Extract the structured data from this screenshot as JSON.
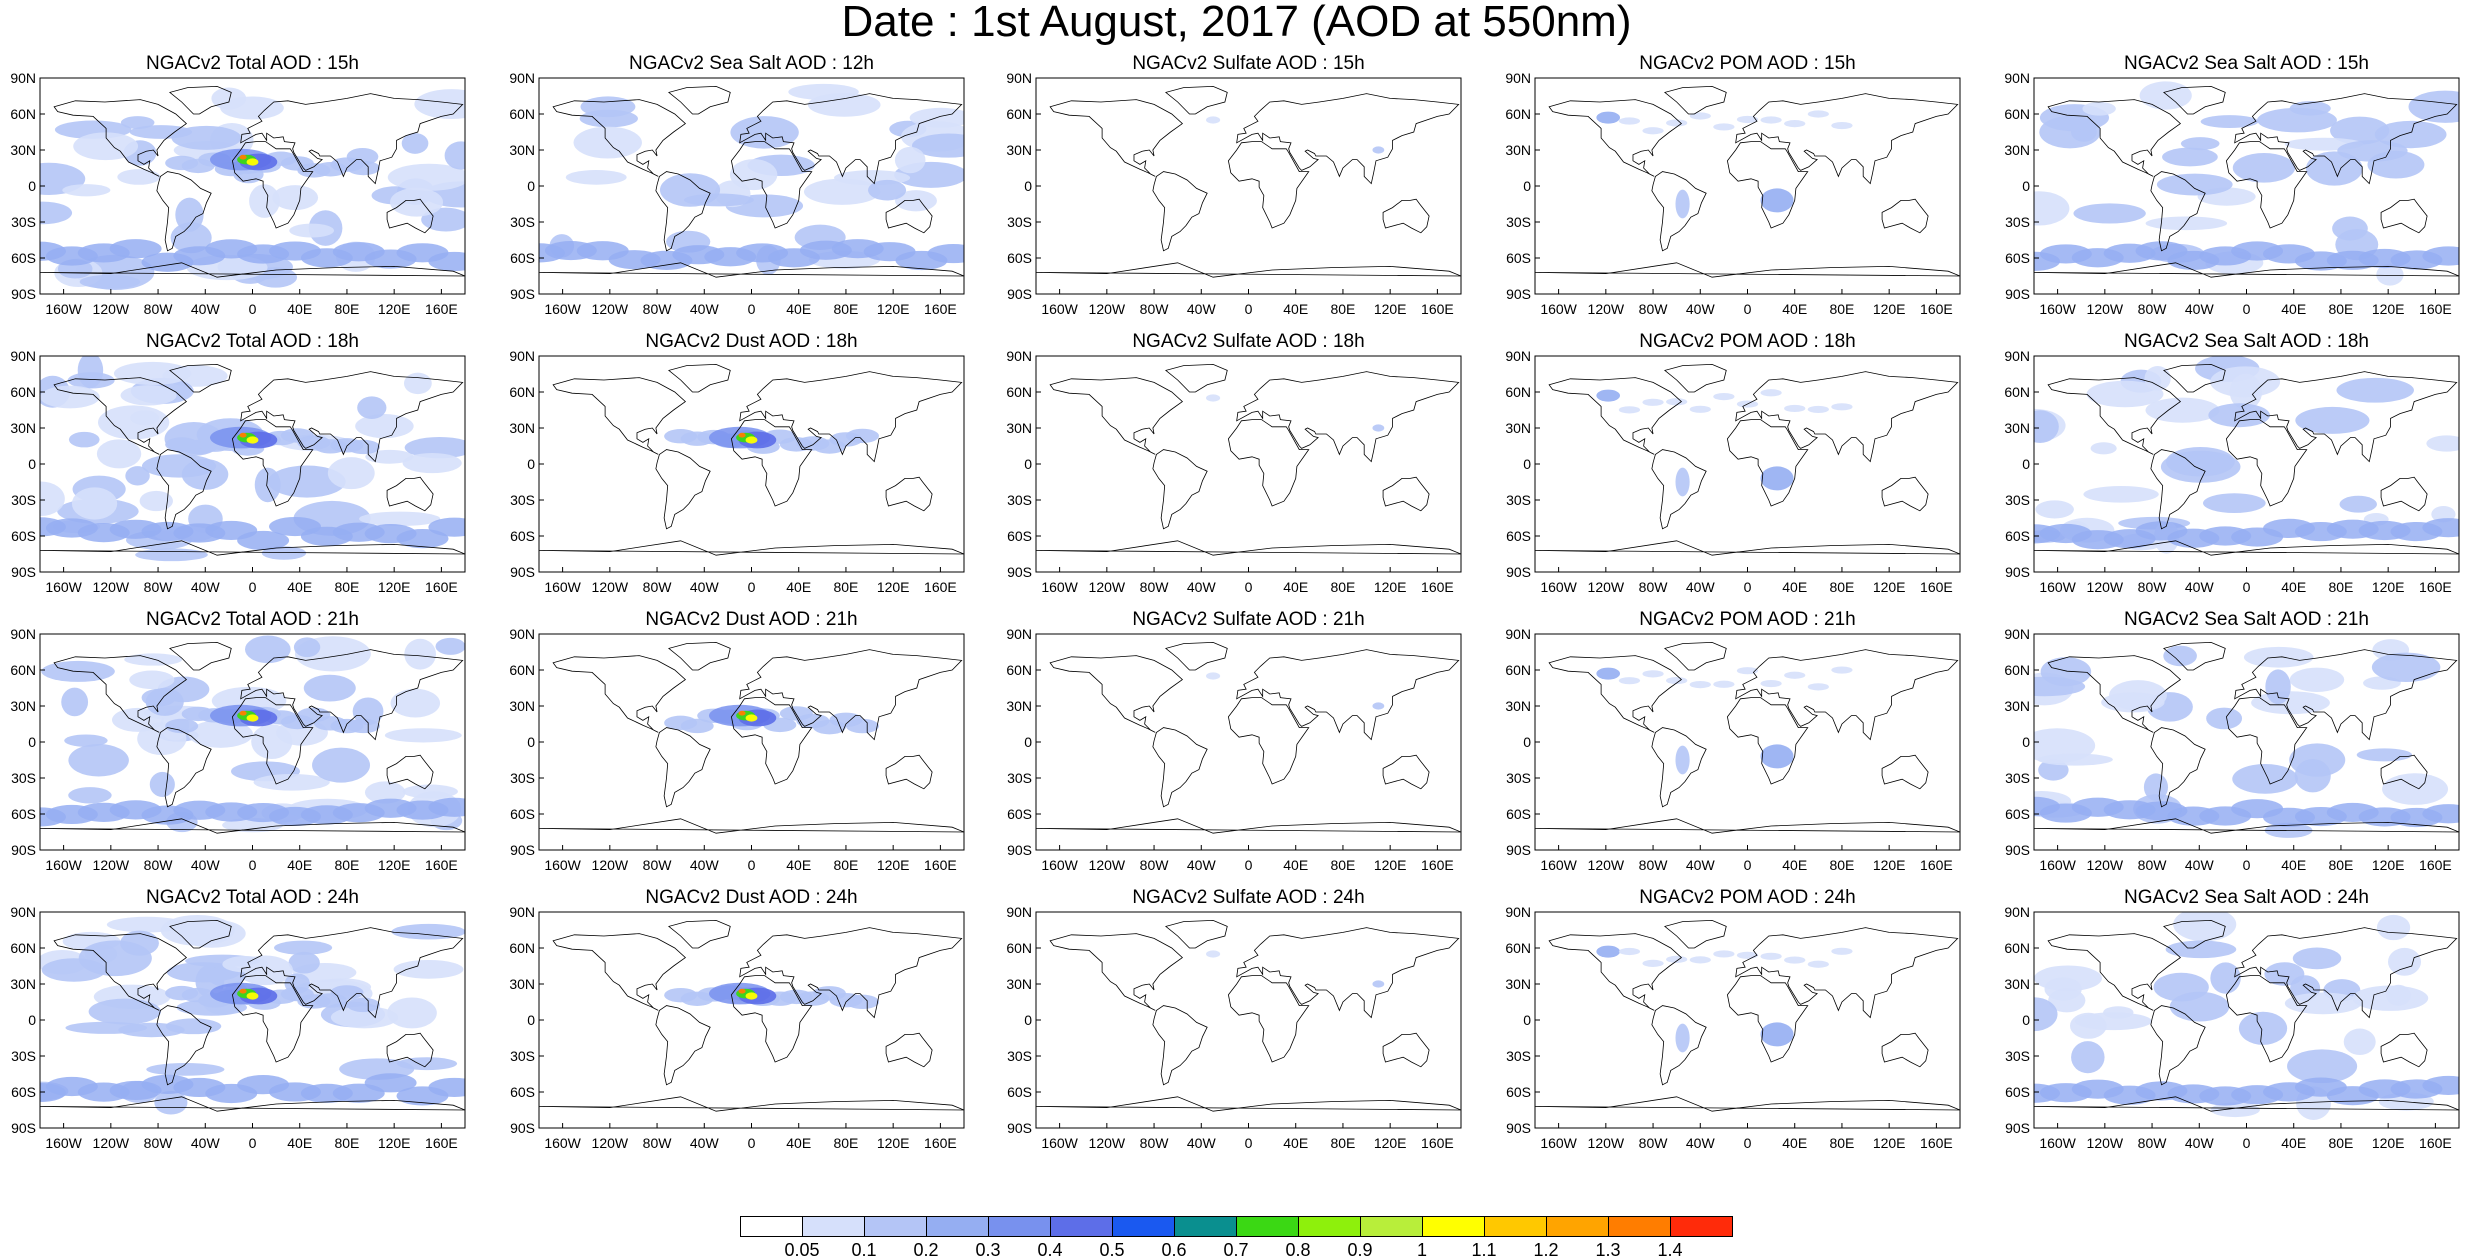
{
  "title": "Date : 1st August, 2017 (AOD at 550nm)",
  "lat_labels": [
    "90N",
    "60N",
    "30N",
    "0",
    "30S",
    "60S",
    "90S"
  ],
  "lon_labels": [
    "160W",
    "120W",
    "80W",
    "40W",
    "0",
    "40E",
    "80E",
    "120E",
    "160E"
  ],
  "panels": [
    [
      "NGACv2 Total AOD : 15h",
      "NGACv2 Sea Salt  AOD : 12h",
      "NGACv2 Sulfate AOD : 15h",
      "NGACv2 POM AOD : 15h",
      "NGACv2 Sea Salt AOD : 15h"
    ],
    [
      "NGACv2 Total AOD : 18h",
      "NGACv2 Dust AOD : 18h",
      "NGACv2 Sulfate AOD : 18h",
      "NGACv2 POM AOD : 18h",
      "NGACv2 Sea Salt AOD : 18h"
    ],
    [
      "NGACv2 Total AOD : 21h",
      "NGACv2 Dust AOD : 21h",
      "NGACv2 Sulfate AOD : 21h",
      "NGACv2 POM AOD : 21h",
      "NGACv2 Sea Salt AOD : 21h"
    ],
    [
      "NGACv2 Total AOD : 24h",
      "NGACv2 Dust AOD : 24h",
      "NGACv2 Sulfate AOD : 24h",
      "NGACv2 POM AOD : 24h",
      "NGACv2 Sea Salt  AOD : 24h"
    ]
  ],
  "colorbar": {
    "labels": [
      "0.05",
      "0.1",
      "0.2",
      "0.3",
      "0.4",
      "0.5",
      "0.6",
      "0.7",
      "0.8",
      "0.9",
      "1",
      "1.1",
      "1.2",
      "1.3",
      "1.4"
    ],
    "colors": [
      "#ffffff",
      "#d6e0fb",
      "#b4c5f6",
      "#95aef2",
      "#7891ee",
      "#5d6ee8",
      "#1a59f0",
      "#0a8f8f",
      "#3bd814",
      "#8ef00c",
      "#b8ee3a",
      "#ffff00",
      "#ffc800",
      "#ffa400",
      "#ff7d00",
      "#ff2b0a"
    ]
  }
}
